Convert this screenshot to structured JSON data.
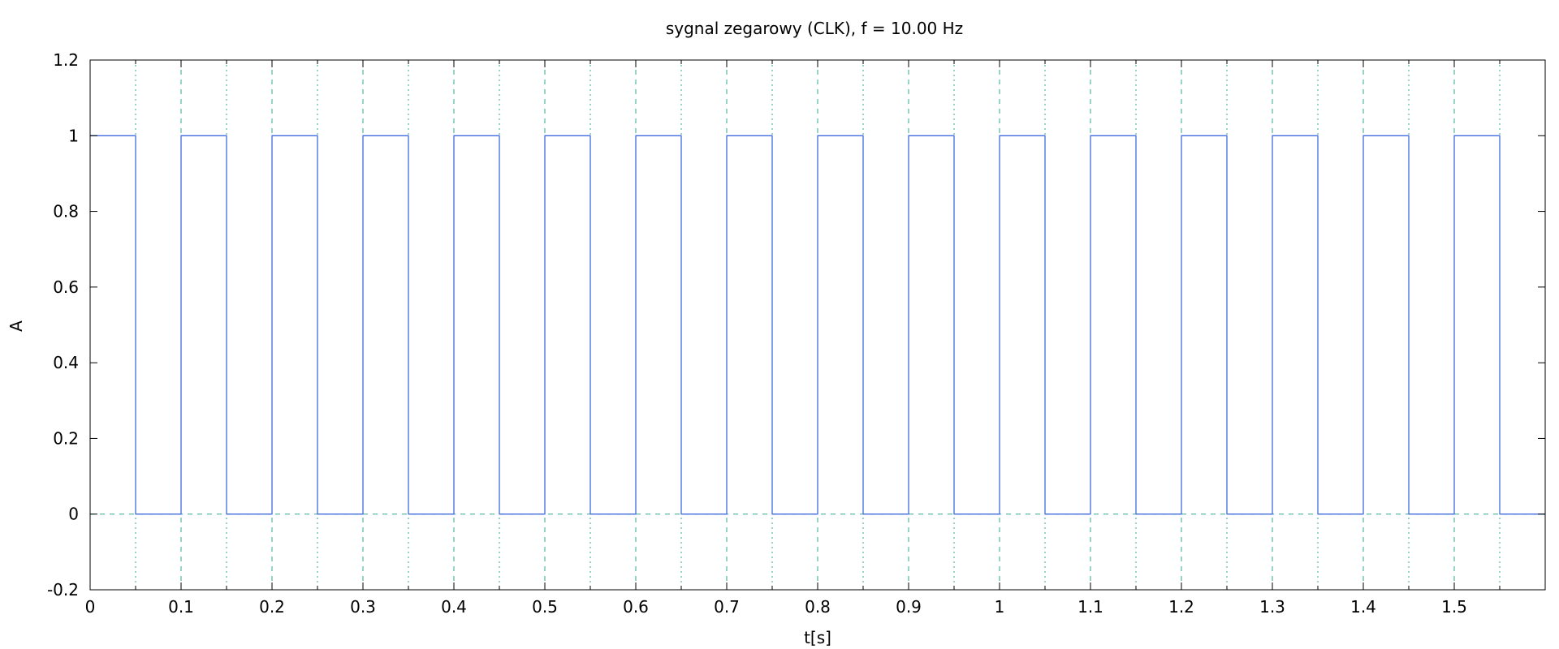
{
  "chart_data": {
    "type": "line",
    "step": true,
    "title": "sygnal zegarowy (CLK), f = 10.00 Hz",
    "xlabel": "t[s]",
    "ylabel": "A",
    "xlim": [
      0,
      1.6
    ],
    "ylim": [
      -0.2,
      1.2
    ],
    "xticks": [
      0,
      0.1,
      0.2,
      0.3,
      0.4,
      0.5,
      0.6,
      0.7,
      0.8,
      0.9,
      1,
      1.1,
      1.2,
      1.3,
      1.4,
      1.5
    ],
    "xtick_labels": [
      "0",
      "0.1",
      "0.2",
      "0.3",
      "0.4",
      "0.5",
      "0.6",
      "0.7",
      "0.8",
      "0.9",
      "1",
      "1.1",
      "1.2",
      "1.3",
      "1.4",
      "1.5"
    ],
    "xminor": [
      0.05,
      0.15,
      0.25,
      0.35,
      0.45,
      0.55,
      0.65,
      0.75,
      0.85,
      0.95,
      1.05,
      1.15,
      1.25,
      1.35,
      1.45,
      1.55
    ],
    "yticks": [
      -0.2,
      0,
      0.2,
      0.4,
      0.6,
      0.8,
      1,
      1.2
    ],
    "ytick_labels": [
      "-0.2",
      "0",
      "0.2",
      "0.4",
      "0.6",
      "0.8",
      "1",
      "1.2"
    ],
    "grid": true,
    "colors": {
      "series": "#4169e1",
      "grid": "#2ca88c",
      "axes": "#000000"
    },
    "series": [
      {
        "x": [
          0,
          0.05,
          0.05,
          0.1,
          0.1,
          0.15,
          0.15,
          0.2,
          0.2,
          0.25,
          0.25,
          0.3,
          0.3,
          0.35,
          0.35,
          0.4,
          0.4,
          0.45,
          0.45,
          0.5,
          0.5,
          0.55,
          0.55,
          0.6,
          0.6,
          0.65,
          0.65,
          0.7,
          0.7,
          0.75,
          0.75,
          0.8,
          0.8,
          0.85,
          0.85,
          0.9,
          0.9,
          0.95,
          0.95,
          1.0,
          1.0,
          1.05,
          1.05,
          1.1,
          1.1,
          1.15,
          1.15,
          1.2,
          1.2,
          1.25,
          1.25,
          1.3,
          1.3,
          1.35,
          1.35,
          1.4,
          1.4,
          1.45,
          1.45,
          1.5,
          1.5,
          1.55,
          1.55,
          1.6
        ],
        "y": [
          1,
          1,
          0,
          0,
          1,
          1,
          0,
          0,
          1,
          1,
          0,
          0,
          1,
          1,
          0,
          0,
          1,
          1,
          0,
          0,
          1,
          1,
          0,
          0,
          1,
          1,
          0,
          0,
          1,
          1,
          0,
          0,
          1,
          1,
          0,
          0,
          1,
          1,
          0,
          0,
          1,
          1,
          0,
          0,
          1,
          1,
          0,
          0,
          1,
          1,
          0,
          0,
          1,
          1,
          0,
          0,
          1,
          1,
          0,
          0,
          1,
          1,
          0,
          0
        ]
      }
    ]
  }
}
